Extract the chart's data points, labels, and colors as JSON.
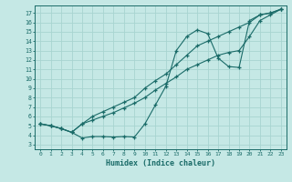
{
  "background_color": "#c5e8e5",
  "line_color": "#1a6b68",
  "grid_color": "#a8d4d0",
  "xlabel": "Humidex (Indice chaleur)",
  "xlim": [
    -0.5,
    23.5
  ],
  "ylim": [
    2.5,
    17.8
  ],
  "yticks": [
    3,
    4,
    5,
    6,
    7,
    8,
    9,
    10,
    11,
    12,
    13,
    14,
    15,
    16,
    17
  ],
  "xticks": [
    0,
    1,
    2,
    3,
    4,
    5,
    6,
    7,
    8,
    9,
    10,
    11,
    12,
    13,
    14,
    15,
    16,
    17,
    18,
    19,
    20,
    21,
    22,
    23
  ],
  "series": [
    {
      "x": [
        0,
        1,
        2,
        3,
        4,
        5,
        6,
        7,
        8,
        9,
        10,
        11,
        12,
        13,
        14,
        15,
        16,
        17,
        18,
        19,
        20,
        21,
        22,
        23
      ],
      "y": [
        5.2,
        5.0,
        4.7,
        4.3,
        3.7,
        3.85,
        3.85,
        3.8,
        3.85,
        3.8,
        5.2,
        7.2,
        9.2,
        13.0,
        14.5,
        15.2,
        14.8,
        12.2,
        11.3,
        11.2,
        16.2,
        16.8,
        17.0,
        17.4
      ]
    },
    {
      "x": [
        0,
        1,
        2,
        3,
        4,
        5,
        6,
        7,
        8,
        9,
        10,
        11,
        12,
        13,
        14,
        15,
        16,
        17,
        18,
        19,
        20,
        21,
        22,
        23
      ],
      "y": [
        5.2,
        5.0,
        4.7,
        4.3,
        5.2,
        5.6,
        6.0,
        6.4,
        6.9,
        7.4,
        8.0,
        8.8,
        9.5,
        10.2,
        11.0,
        11.5,
        12.0,
        12.5,
        12.8,
        13.0,
        14.5,
        16.2,
        16.8,
        17.4
      ]
    },
    {
      "x": [
        0,
        1,
        2,
        3,
        4,
        5,
        6,
        7,
        8,
        9,
        10,
        11,
        12,
        13,
        14,
        15,
        16,
        17,
        18,
        19,
        20,
        21,
        22,
        23
      ],
      "y": [
        5.2,
        5.0,
        4.7,
        4.3,
        5.2,
        6.0,
        6.5,
        7.0,
        7.5,
        8.0,
        9.0,
        9.8,
        10.5,
        11.5,
        12.5,
        13.5,
        14.0,
        14.5,
        15.0,
        15.5,
        16.0,
        16.8,
        17.0,
        17.4
      ]
    }
  ]
}
